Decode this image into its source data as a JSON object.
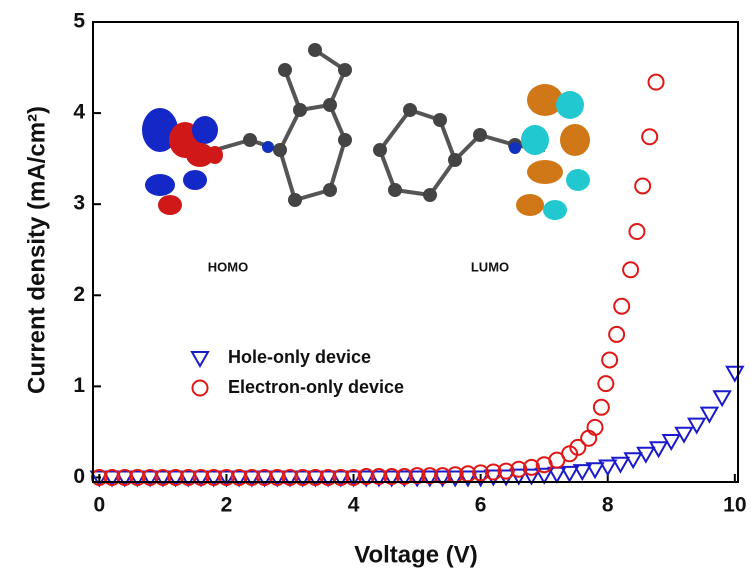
{
  "chart_data": {
    "type": "scatter",
    "xlabel": "Voltage (V)",
    "ylabel": "Current density (mA/cm²)",
    "annotations": [
      "HOMO",
      "LUMO"
    ],
    "xlim": [
      -0.1,
      10.05
    ],
    "ylim": [
      -0.05,
      5
    ],
    "xticks": [
      0,
      2,
      4,
      6,
      8,
      10
    ],
    "yticks": [
      0,
      1,
      2,
      3,
      4,
      5
    ],
    "legend": "center left",
    "series": [
      {
        "name": "Hole-only device",
        "color": "#1a1acc",
        "marker": "triangle-down",
        "x": [
          0,
          0.2,
          0.4,
          0.6,
          0.8,
          1.0,
          1.2,
          1.4,
          1.6,
          1.8,
          2.0,
          2.2,
          2.4,
          2.6,
          2.8,
          3.0,
          3.2,
          3.4,
          3.6,
          3.8,
          4.0,
          4.2,
          4.4,
          4.6,
          4.8,
          5.0,
          5.2,
          5.4,
          5.6,
          5.8,
          6.0,
          6.2,
          6.4,
          6.6,
          6.8,
          7.0,
          7.2,
          7.4,
          7.6,
          7.8,
          8.0,
          8.2,
          8.4,
          8.6,
          8.8,
          9.0,
          9.2,
          9.4,
          9.6,
          9.8,
          10.0
        ],
        "values": [
          0,
          0,
          0,
          0,
          0,
          0,
          0,
          0,
          0,
          0,
          0,
          0,
          0,
          0,
          0,
          0,
          0,
          0,
          0,
          0,
          0,
          0,
          0,
          0,
          0,
          0,
          0,
          0,
          0,
          0,
          0,
          0.01,
          0.01,
          0.02,
          0.02,
          0.03,
          0.04,
          0.05,
          0.07,
          0.09,
          0.12,
          0.15,
          0.2,
          0.26,
          0.32,
          0.4,
          0.48,
          0.58,
          0.7,
          0.88,
          1.15
        ]
      },
      {
        "name": "Electron-only device",
        "color": "#e01818",
        "marker": "circle",
        "x": [
          0,
          0.2,
          0.4,
          0.6,
          0.8,
          1.0,
          1.2,
          1.4,
          1.6,
          1.8,
          2.0,
          2.2,
          2.4,
          2.6,
          2.8,
          3.0,
          3.2,
          3.4,
          3.6,
          3.8,
          4.0,
          4.2,
          4.4,
          4.6,
          4.8,
          5.0,
          5.2,
          5.4,
          5.6,
          5.8,
          6.0,
          6.2,
          6.4,
          6.6,
          6.8,
          7.0,
          7.2,
          7.4,
          7.53,
          7.7,
          7.8,
          7.9,
          7.97,
          8.03,
          8.14,
          8.22,
          8.36,
          8.46,
          8.55,
          8.66,
          8.76
        ],
        "values": [
          0,
          0,
          0,
          0,
          0,
          0,
          0,
          0,
          0,
          0,
          0,
          0,
          0,
          0,
          0,
          0,
          0,
          0,
          0,
          0,
          0,
          0.01,
          0.01,
          0.01,
          0.01,
          0.02,
          0.02,
          0.02,
          0.03,
          0.04,
          0.05,
          0.06,
          0.07,
          0.09,
          0.11,
          0.14,
          0.19,
          0.26,
          0.33,
          0.43,
          0.55,
          0.77,
          1.03,
          1.29,
          1.57,
          1.88,
          2.28,
          2.7,
          3.2,
          3.74,
          4.34
        ]
      }
    ]
  }
}
